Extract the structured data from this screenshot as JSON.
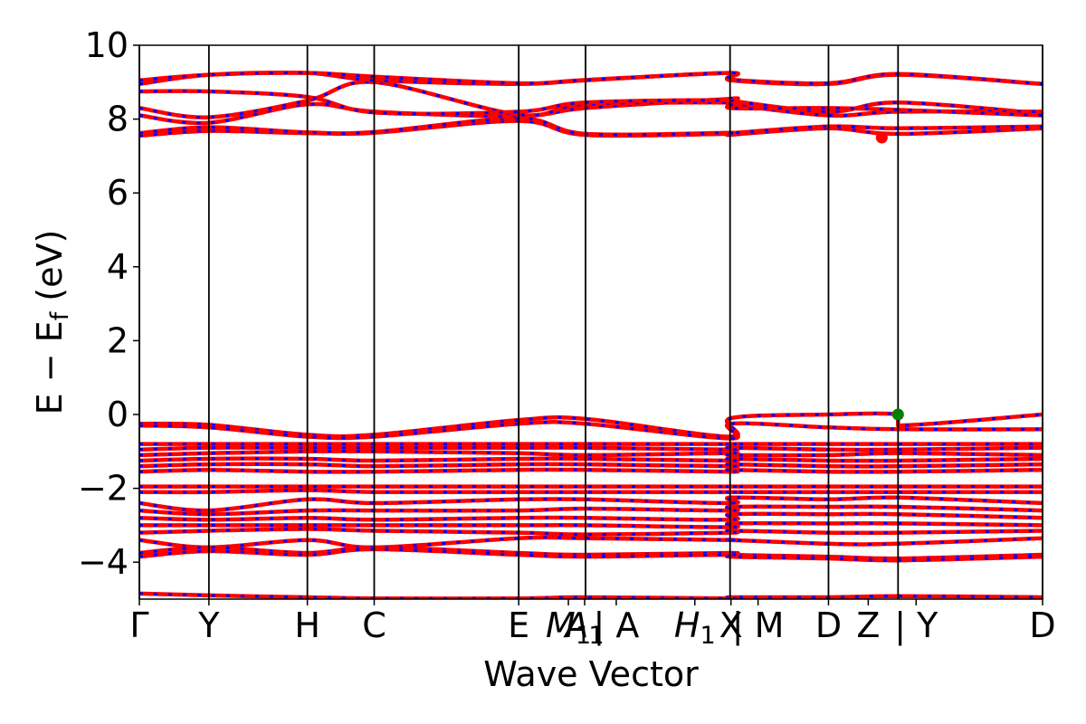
{
  "chart_data": {
    "type": "line",
    "title": "",
    "xlabel": "Wave Vector",
    "ylabel": "E − E_f (eV)",
    "ylim": [
      -5,
      10
    ],
    "yticks": [
      -4,
      -2,
      0,
      2,
      4,
      6,
      8,
      10
    ],
    "ytick_labels": [
      "−4",
      "−2",
      "0",
      "2",
      "4",
      "6",
      "8",
      "10"
    ],
    "grid": false,
    "kpoint_labels": [
      {
        "label": "Γ",
        "k": 0.0
      },
      {
        "label": "Y",
        "k": 0.077
      },
      {
        "label": "H",
        "k": 0.186
      },
      {
        "label": "C",
        "k": 0.26
      },
      {
        "label": "E",
        "k": 0.42
      },
      {
        "label": "M_1",
        "k": 0.475
      },
      {
        "label": "A_1",
        "k": 0.493
      },
      {
        "label": "| A",
        "k": 0.528
      },
      {
        "label": "H_1",
        "k": 0.615
      },
      {
        "label": "X",
        "k": 0.655
      },
      {
        "label": "| M",
        "k": 0.685
      },
      {
        "label": "D",
        "k": 0.763
      },
      {
        "label": "Z",
        "k": 0.807
      },
      {
        "label": "| Y",
        "k": 0.86
      },
      {
        "label": "D",
        "k": 1.0
      }
    ],
    "vertical_lines_k": [
      0.0,
      0.077,
      0.186,
      0.26,
      0.42,
      0.494,
      0.654,
      0.763,
      0.84,
      1.0
    ],
    "series_colors": {
      "spin_up": "#ff0000",
      "spin_down": "#0000ff"
    },
    "conduction_bands": [
      [
        [
          0,
          7.55
        ],
        [
          0.077,
          7.68
        ],
        [
          0.186,
          7.62
        ],
        [
          0.26,
          7.63
        ],
        [
          0.42,
          7.95
        ],
        [
          0.494,
          7.57
        ],
        [
          0.654,
          7.6
        ],
        [
          0.655,
          7.58
        ],
        [
          0.763,
          7.75
        ],
        [
          0.84,
          7.6
        ],
        [
          1.0,
          7.75
        ]
      ],
      [
        [
          0,
          7.62
        ],
        [
          0.077,
          7.78
        ],
        [
          0.186,
          7.64
        ],
        [
          0.26,
          7.65
        ],
        [
          0.42,
          8.02
        ],
        [
          0.494,
          7.6
        ],
        [
          0.654,
          7.63
        ],
        [
          0.655,
          7.62
        ],
        [
          0.763,
          7.8
        ],
        [
          0.84,
          7.75
        ],
        [
          1.0,
          7.8
        ]
      ],
      [
        [
          0,
          8.1
        ],
        [
          0.077,
          7.9
        ],
        [
          0.186,
          8.4
        ],
        [
          0.26,
          8.2
        ],
        [
          0.42,
          8.08
        ],
        [
          0.494,
          8.3
        ],
        [
          0.654,
          8.55
        ],
        [
          0.655,
          8.5
        ],
        [
          0.763,
          8.2
        ],
        [
          0.84,
          8.45
        ],
        [
          1.0,
          8.15
        ]
      ],
      [
        [
          0,
          8.3
        ],
        [
          0.077,
          8.05
        ],
        [
          0.186,
          8.5
        ],
        [
          0.26,
          9.0
        ],
        [
          0.42,
          8.12
        ],
        [
          0.494,
          8.4
        ],
        [
          0.654,
          8.45
        ],
        [
          0.655,
          8.4
        ],
        [
          0.763,
          8.1
        ],
        [
          0.84,
          8.2
        ],
        [
          1.0,
          8.2
        ]
      ],
      [
        [
          0,
          8.75
        ],
        [
          0.077,
          8.75
        ],
        [
          0.186,
          8.6
        ],
        [
          0.26,
          8.18
        ],
        [
          0.42,
          8.2
        ],
        [
          0.494,
          8.45
        ],
        [
          0.654,
          8.5
        ],
        [
          0.655,
          8.3
        ],
        [
          0.763,
          8.3
        ],
        [
          0.84,
          8.25
        ],
        [
          1.0,
          8.1
        ]
      ],
      [
        [
          0,
          8.95
        ],
        [
          0.077,
          9.2
        ],
        [
          0.186,
          9.25
        ],
        [
          0.26,
          9.05
        ],
        [
          0.42,
          8.95
        ],
        [
          0.494,
          9.05
        ],
        [
          0.654,
          9.25
        ],
        [
          0.655,
          9.05
        ],
        [
          0.763,
          8.95
        ],
        [
          0.84,
          9.2
        ],
        [
          1.0,
          8.95
        ]
      ],
      [
        [
          0,
          9.05
        ],
        [
          0.077,
          9.2
        ],
        [
          0.186,
          9.25
        ],
        [
          0.26,
          9.15
        ],
        [
          0.42,
          8.97
        ],
        [
          0.494,
          9.06
        ],
        [
          0.654,
          9.25
        ],
        [
          0.655,
          9.07
        ],
        [
          0.763,
          8.97
        ],
        [
          0.84,
          9.22
        ],
        [
          1.0,
          8.95
        ]
      ]
    ],
    "valence_bands": [
      [
        [
          0,
          -0.25
        ],
        [
          0.077,
          -0.28
        ],
        [
          0.186,
          -0.55
        ],
        [
          0.26,
          -0.55
        ],
        [
          0.42,
          -0.15
        ],
        [
          0.494,
          -0.12
        ],
        [
          0.654,
          -0.6
        ],
        [
          0.655,
          -0.1
        ],
        [
          0.763,
          0.0
        ],
        [
          0.84,
          0.0
        ],
        [
          0.84,
          -0.3
        ],
        [
          1.0,
          0.0
        ]
      ],
      [
        [
          0,
          -0.3
        ],
        [
          0.077,
          -0.35
        ],
        [
          0.186,
          -0.6
        ],
        [
          0.26,
          -0.6
        ],
        [
          0.42,
          -0.25
        ],
        [
          0.494,
          -0.25
        ],
        [
          0.654,
          -0.65
        ],
        [
          0.655,
          -0.25
        ],
        [
          0.763,
          -0.35
        ],
        [
          0.84,
          -0.4
        ],
        [
          1.0,
          -0.4
        ]
      ],
      [
        [
          0,
          -0.8
        ],
        [
          0.077,
          -0.8
        ],
        [
          0.186,
          -0.8
        ],
        [
          0.26,
          -0.8
        ],
        [
          0.42,
          -0.8
        ],
        [
          0.494,
          -0.8
        ],
        [
          0.654,
          -0.8
        ],
        [
          0.655,
          -0.8
        ],
        [
          0.763,
          -0.8
        ],
        [
          0.84,
          -0.8
        ],
        [
          1.0,
          -0.8
        ]
      ],
      [
        [
          0,
          -0.95
        ],
        [
          0.077,
          -0.9
        ],
        [
          0.186,
          -0.9
        ],
        [
          0.26,
          -0.9
        ],
        [
          0.42,
          -0.9
        ],
        [
          0.494,
          -0.9
        ],
        [
          0.654,
          -0.95
        ],
        [
          0.655,
          -0.9
        ],
        [
          0.763,
          -0.95
        ],
        [
          0.84,
          -0.95
        ],
        [
          1.0,
          -0.9
        ]
      ],
      [
        [
          0,
          -1.1
        ],
        [
          0.077,
          -1.05
        ],
        [
          0.186,
          -1.0
        ],
        [
          0.26,
          -1.0
        ],
        [
          0.42,
          -1.05
        ],
        [
          0.494,
          -1.1
        ],
        [
          0.654,
          -1.05
        ],
        [
          0.655,
          -1.1
        ],
        [
          0.763,
          -1.1
        ],
        [
          0.84,
          -1.05
        ],
        [
          1.0,
          -1.1
        ]
      ],
      [
        [
          0,
          -1.25
        ],
        [
          0.077,
          -1.2
        ],
        [
          0.186,
          -1.2
        ],
        [
          0.26,
          -1.25
        ],
        [
          0.42,
          -1.2
        ],
        [
          0.494,
          -1.2
        ],
        [
          0.654,
          -1.25
        ],
        [
          0.655,
          -1.2
        ],
        [
          0.763,
          -1.25
        ],
        [
          0.84,
          -1.25
        ],
        [
          1.0,
          -1.2
        ]
      ],
      [
        [
          0,
          -1.4
        ],
        [
          0.077,
          -1.35
        ],
        [
          0.186,
          -1.35
        ],
        [
          0.26,
          -1.4
        ],
        [
          0.42,
          -1.35
        ],
        [
          0.494,
          -1.35
        ],
        [
          0.654,
          -1.4
        ],
        [
          0.655,
          -1.35
        ],
        [
          0.763,
          -1.4
        ],
        [
          0.84,
          -1.4
        ],
        [
          1.0,
          -1.35
        ]
      ],
      [
        [
          0,
          -1.55
        ],
        [
          0.077,
          -1.5
        ],
        [
          0.186,
          -1.55
        ],
        [
          0.26,
          -1.55
        ],
        [
          0.42,
          -1.5
        ],
        [
          0.494,
          -1.5
        ],
        [
          0.654,
          -1.55
        ],
        [
          0.655,
          -1.5
        ],
        [
          0.763,
          -1.55
        ],
        [
          0.84,
          -1.55
        ],
        [
          1.0,
          -1.5
        ]
      ],
      [
        [
          0,
          -1.95
        ],
        [
          0.077,
          -1.95
        ],
        [
          0.186,
          -1.95
        ],
        [
          0.26,
          -1.95
        ],
        [
          0.42,
          -1.95
        ],
        [
          0.494,
          -1.95
        ],
        [
          0.654,
          -1.95
        ],
        [
          0.655,
          -1.95
        ],
        [
          0.763,
          -1.95
        ],
        [
          0.84,
          -1.95
        ],
        [
          1.0,
          -1.95
        ]
      ],
      [
        [
          0,
          -2.1
        ],
        [
          0.077,
          -2.1
        ],
        [
          0.186,
          -2.05
        ],
        [
          0.26,
          -2.1
        ],
        [
          0.42,
          -2.1
        ],
        [
          0.494,
          -2.1
        ],
        [
          0.654,
          -2.1
        ],
        [
          0.655,
          -2.1
        ],
        [
          0.763,
          -2.1
        ],
        [
          0.84,
          -2.1
        ],
        [
          1.0,
          -2.1
        ]
      ],
      [
        [
          0,
          -2.4
        ],
        [
          0.077,
          -2.6
        ],
        [
          0.186,
          -2.3
        ],
        [
          0.26,
          -2.4
        ],
        [
          0.42,
          -2.3
        ],
        [
          0.494,
          -2.3
        ],
        [
          0.654,
          -2.4
        ],
        [
          0.655,
          -2.25
        ],
        [
          0.763,
          -2.3
        ],
        [
          0.84,
          -2.25
        ],
        [
          1.0,
          -2.4
        ]
      ],
      [
        [
          0,
          -2.6
        ],
        [
          0.077,
          -2.7
        ],
        [
          0.186,
          -2.6
        ],
        [
          0.26,
          -2.6
        ],
        [
          0.42,
          -2.6
        ],
        [
          0.494,
          -2.55
        ],
        [
          0.654,
          -2.6
        ],
        [
          0.655,
          -2.5
        ],
        [
          0.763,
          -2.5
        ],
        [
          0.84,
          -2.5
        ],
        [
          1.0,
          -2.6
        ]
      ],
      [
        [
          0,
          -2.8
        ],
        [
          0.077,
          -2.85
        ],
        [
          0.186,
          -2.8
        ],
        [
          0.26,
          -2.85
        ],
        [
          0.42,
          -2.8
        ],
        [
          0.494,
          -2.8
        ],
        [
          0.654,
          -2.85
        ],
        [
          0.655,
          -2.7
        ],
        [
          0.763,
          -2.7
        ],
        [
          0.84,
          -2.7
        ],
        [
          1.0,
          -2.8
        ]
      ],
      [
        [
          0,
          -3.0
        ],
        [
          0.077,
          -3.0
        ],
        [
          0.186,
          -3.0
        ],
        [
          0.26,
          -3.0
        ],
        [
          0.42,
          -3.0
        ],
        [
          0.494,
          -3.0
        ],
        [
          0.654,
          -3.05
        ],
        [
          0.655,
          -2.95
        ],
        [
          0.763,
          -2.95
        ],
        [
          0.84,
          -2.95
        ],
        [
          1.0,
          -3.0
        ]
      ],
      [
        [
          0,
          -3.2
        ],
        [
          0.077,
          -3.15
        ],
        [
          0.186,
          -3.1
        ],
        [
          0.26,
          -3.15
        ],
        [
          0.42,
          -3.2
        ],
        [
          0.494,
          -3.25
        ],
        [
          0.654,
          -3.2
        ],
        [
          0.655,
          -3.15
        ],
        [
          0.763,
          -3.2
        ],
        [
          0.84,
          -3.2
        ],
        [
          1.0,
          -3.15
        ]
      ],
      [
        [
          0,
          -3.4
        ],
        [
          0.077,
          -3.6
        ],
        [
          0.186,
          -3.4
        ],
        [
          0.26,
          -3.6
        ],
        [
          0.42,
          -3.35
        ],
        [
          0.494,
          -3.35
        ],
        [
          0.654,
          -3.4
        ],
        [
          0.655,
          -3.4
        ],
        [
          0.763,
          -3.5
        ],
        [
          0.84,
          -3.5
        ],
        [
          1.0,
          -3.35
        ]
      ],
      [
        [
          0,
          -3.75
        ],
        [
          0.077,
          -3.6
        ],
        [
          0.186,
          -3.75
        ],
        [
          0.26,
          -3.6
        ],
        [
          0.42,
          -3.75
        ],
        [
          0.494,
          -3.8
        ],
        [
          0.654,
          -3.75
        ],
        [
          0.655,
          -3.8
        ],
        [
          0.763,
          -3.85
        ],
        [
          0.84,
          -3.9
        ],
        [
          1.0,
          -3.8
        ]
      ],
      [
        [
          0,
          -3.85
        ],
        [
          0.077,
          -3.7
        ],
        [
          0.186,
          -3.8
        ],
        [
          0.26,
          -3.65
        ],
        [
          0.42,
          -3.8
        ],
        [
          0.494,
          -3.85
        ],
        [
          0.654,
          -3.8
        ],
        [
          0.655,
          -3.85
        ],
        [
          0.763,
          -3.9
        ],
        [
          0.84,
          -3.95
        ],
        [
          1.0,
          -3.85
        ]
      ]
    ],
    "deep_bands": [
      [
        [
          0,
          -4.85
        ],
        [
          0.077,
          -4.9
        ],
        [
          0.186,
          -4.95
        ],
        [
          0.26,
          -4.98
        ],
        [
          0.42,
          -4.98
        ],
        [
          0.494,
          -4.95
        ],
        [
          0.654,
          -4.98
        ],
        [
          0.655,
          -4.95
        ],
        [
          0.763,
          -4.95
        ],
        [
          0.84,
          -4.92
        ],
        [
          1.0,
          -4.95
        ]
      ]
    ],
    "markers": [
      {
        "role": "conduction_band_minimum",
        "k": 0.822,
        "e": 7.5,
        "color": "#ff0000"
      },
      {
        "role": "valence_band_maximum",
        "k": 0.84,
        "e": 0.0,
        "color": "#008000"
      }
    ]
  }
}
